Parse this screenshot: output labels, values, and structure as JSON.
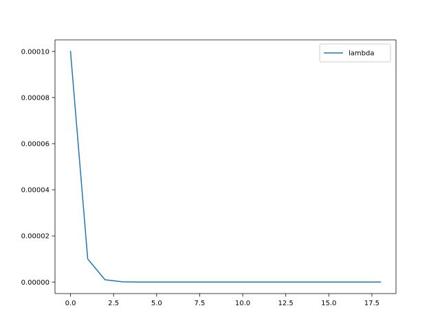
{
  "chart_data": {
    "type": "line",
    "title": "",
    "xlabel": "",
    "ylabel": "",
    "xlim": [
      -0.9,
      18.9
    ],
    "ylim": [
      -5e-06,
      0.000105
    ],
    "x_ticks": [
      0.0,
      2.5,
      5.0,
      7.5,
      10.0,
      12.5,
      15.0,
      17.5
    ],
    "x_tick_labels": [
      "0.0",
      "2.5",
      "5.0",
      "7.5",
      "10.0",
      "12.5",
      "15.0",
      "17.5"
    ],
    "y_ticks": [
      0.0,
      2e-05,
      4e-05,
      6e-05,
      8e-05,
      0.0001
    ],
    "y_tick_labels": [
      "0.00000",
      "0.00002",
      "0.00004",
      "0.00006",
      "0.00008",
      "0.00010"
    ],
    "grid": false,
    "legend_position": "top-right",
    "series": [
      {
        "name": "lambda",
        "color": "#1f77b4",
        "x": [
          0,
          1,
          2,
          3,
          4,
          5,
          6,
          7,
          8,
          9,
          10,
          11,
          12,
          13,
          14,
          15,
          16,
          17,
          18
        ],
        "y": [
          0.0001,
          1e-05,
          1e-06,
          1e-07,
          1e-08,
          1e-09,
          0,
          0,
          0,
          0,
          0,
          0,
          0,
          0,
          0,
          0,
          0,
          0,
          0
        ]
      }
    ]
  }
}
